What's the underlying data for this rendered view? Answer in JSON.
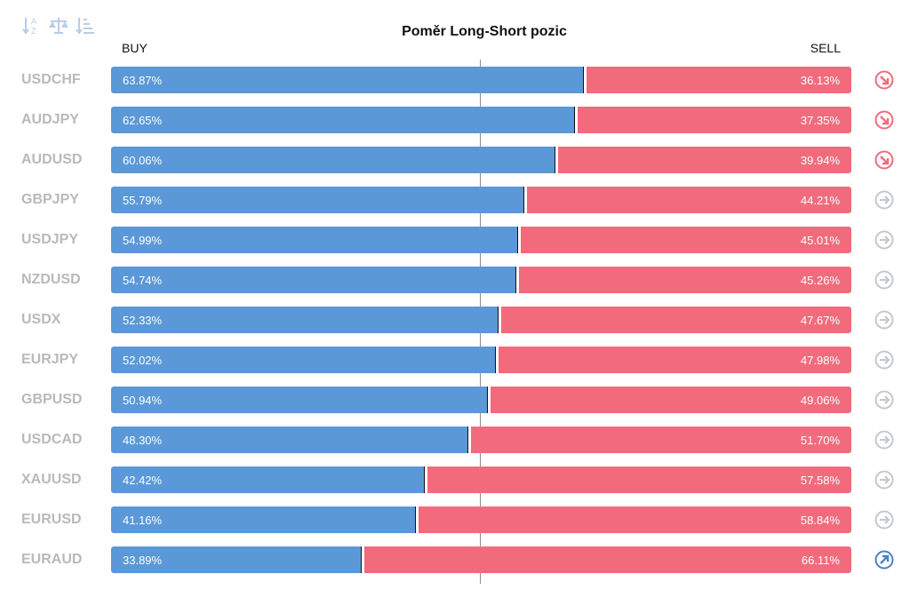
{
  "title": "Poměr Long-Short pozic",
  "header": {
    "buy_label": "BUY",
    "sell_label": "SELL"
  },
  "toolbar": {
    "icons": [
      "sort-alpha-icon",
      "balance-scale-icon",
      "sort-desc-icon"
    ]
  },
  "colors": {
    "buy": "#5b98d7",
    "sell": "#f26b7c",
    "label": "#b9b9b9",
    "trend_down": "#f26b7c",
    "trend_neutral": "#c4c8cf",
    "trend_up": "#4a80c4"
  },
  "chart_data": {
    "type": "bar",
    "stacked": true,
    "orientation": "horizontal",
    "title": "Poměr Long-Short pozic",
    "categories": [
      "USDCHF",
      "AUDJPY",
      "AUDUSD",
      "GBPJPY",
      "USDJPY",
      "NZDUSD",
      "USDX",
      "EURJPY",
      "GBPUSD",
      "USDCAD",
      "XAUUSD",
      "EURUSD",
      "EURAUD"
    ],
    "series": [
      {
        "name": "BUY",
        "values": [
          63.87,
          62.65,
          60.06,
          55.79,
          54.99,
          54.74,
          52.33,
          52.02,
          50.94,
          48.3,
          42.42,
          41.16,
          33.89
        ],
        "labels": [
          "63.87%",
          "62.65%",
          "60.06%",
          "55.79%",
          "54.99%",
          "54.74%",
          "52.33%",
          "52.02%",
          "50.94%",
          "48.30%",
          "42.42%",
          "41.16%",
          "33.89%"
        ]
      },
      {
        "name": "SELL",
        "values": [
          36.13,
          37.35,
          39.94,
          44.21,
          45.01,
          45.26,
          47.67,
          47.98,
          49.06,
          51.7,
          57.58,
          58.84,
          66.11
        ],
        "labels": [
          "36.13%",
          "37.35%",
          "39.94%",
          "44.21%",
          "45.01%",
          "45.26%",
          "47.67%",
          "47.98%",
          "49.06%",
          "51.70%",
          "57.58%",
          "58.84%",
          "66.11%"
        ]
      }
    ],
    "trend": [
      "down",
      "down",
      "down",
      "neutral",
      "neutral",
      "neutral",
      "neutral",
      "neutral",
      "neutral",
      "neutral",
      "neutral",
      "neutral",
      "up"
    ],
    "xlim": [
      0,
      100
    ],
    "reference_line": 50,
    "legend": "none",
    "grid": false
  }
}
